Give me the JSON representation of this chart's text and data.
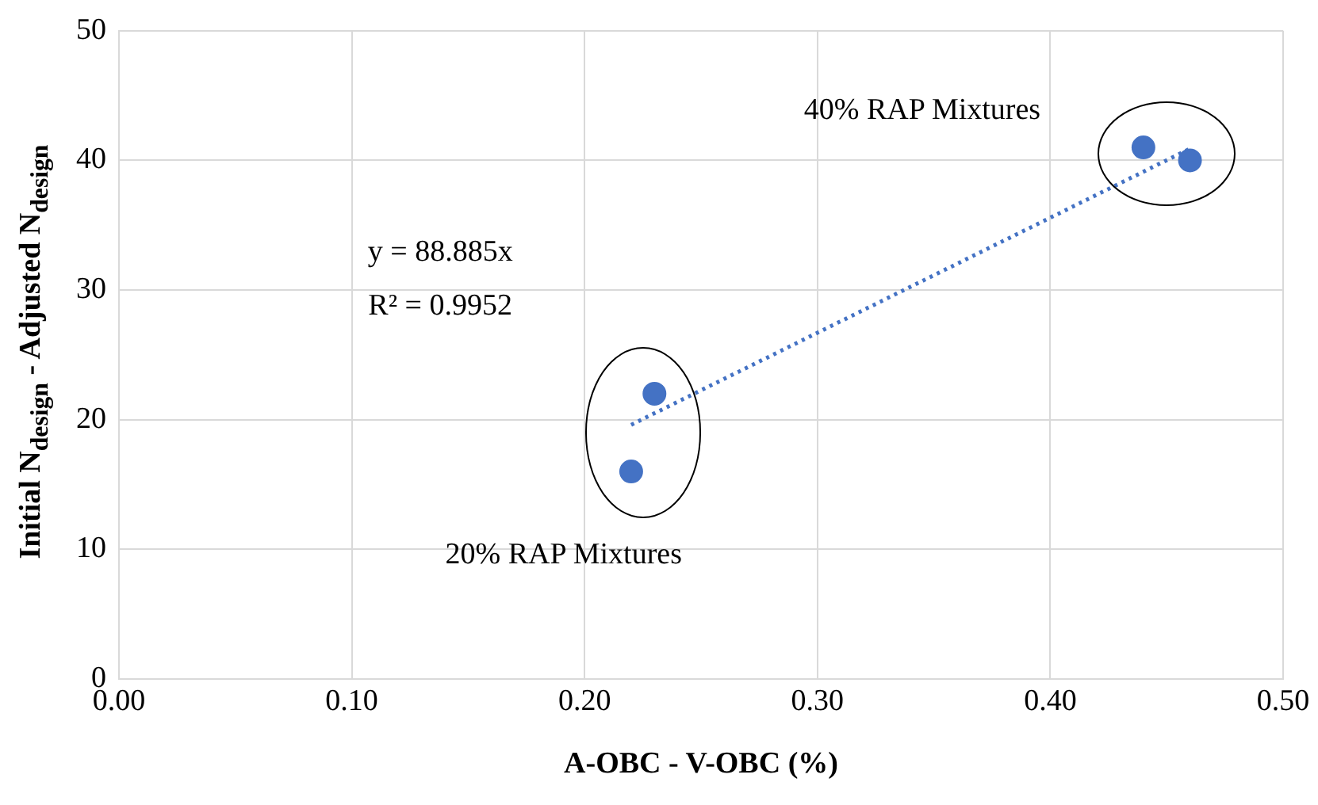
{
  "chart_data": {
    "type": "scatter",
    "xlabel": "A-OBC - V-OBC (%)",
    "ylabel": "Initial N$_{design}$ - Adjusted N$_{design}$",
    "xlim": [
      0,
      0.5
    ],
    "xticks": [
      {
        "value": 0,
        "label": "0.00"
      },
      {
        "value": 0.1,
        "label": "0.10"
      },
      {
        "value": 0.2,
        "label": "0.20"
      },
      {
        "value": 0.3,
        "label": "0.30"
      },
      {
        "value": 0.4,
        "label": "0.40"
      },
      {
        "value": 0.5,
        "label": "0.50"
      }
    ],
    "ylim": [
      0,
      50
    ],
    "yticks": [
      0,
      10,
      20,
      30,
      40,
      50
    ],
    "grid": true,
    "legend": false,
    "series": [
      {
        "color": "#4472c4",
        "marker": "circle",
        "x": [
          0.22,
          0.23,
          0.44,
          0.46
        ],
        "values": [
          16,
          22,
          41,
          40
        ]
      },
      {
        "type": "line",
        "color": "#4472c4",
        "marker": "none",
        "line_style": "dotted",
        "x": [
          0.22,
          0.46
        ],
        "values": [
          19.6,
          40.9
        ]
      }
    ],
    "annotations": [
      "y = 88.885x",
      "R² = 0.9952",
      "40% RAP Mixtures",
      "20% RAP Mixtures"
    ]
  }
}
